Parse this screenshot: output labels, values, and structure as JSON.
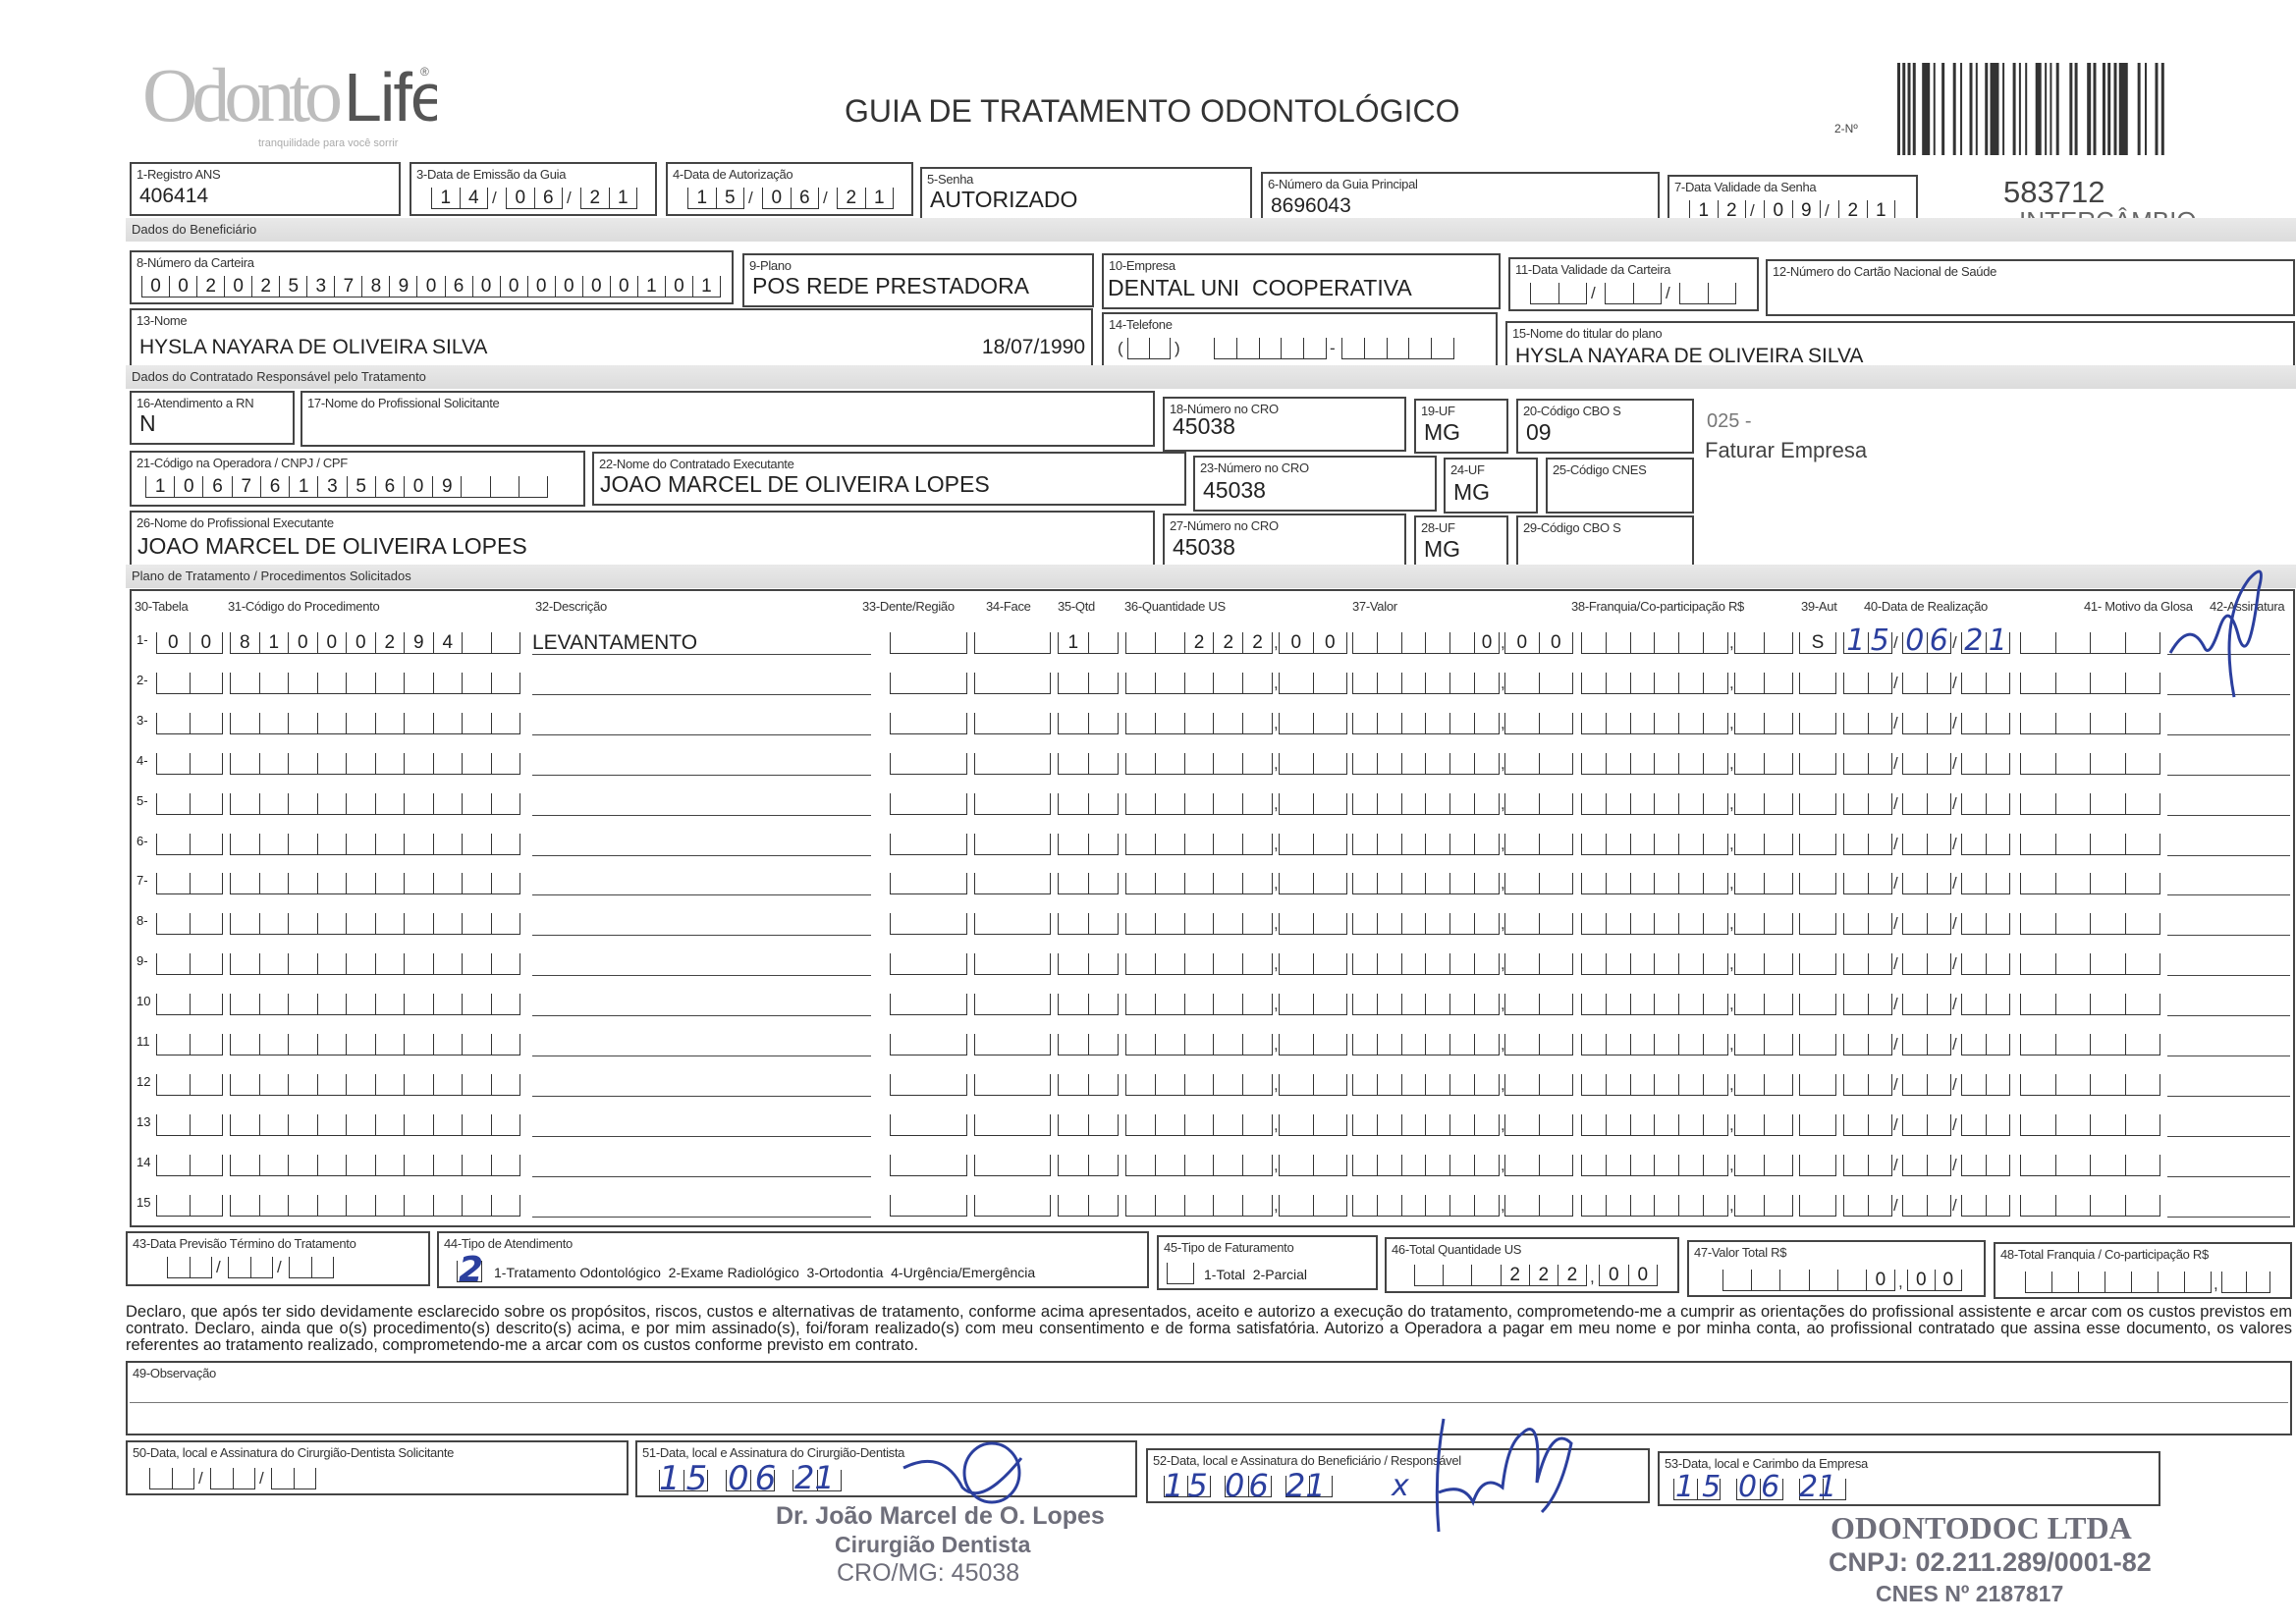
{
  "header": {
    "logo_text": "OdontoLife",
    "logo_tagline": "tranquilidade para você sorrir",
    "title": "GUIA DE TRATAMENTO ODONTOLÓGICO",
    "guide_number_label": "2-Nº",
    "guide_id": "583712",
    "guide_type": "INTERCÂMBIO"
  },
  "fields": {
    "registro_ans": {
      "label": "1-Registro ANS",
      "value": "406414"
    },
    "data_emissao": {
      "label": "3-Data de Emissão da Guia",
      "day": "14",
      "month": "06",
      "year": "21"
    },
    "data_autorizacao": {
      "label": "4-Data de Autorização",
      "day": "15",
      "month": "06",
      "year": "21"
    },
    "senha": {
      "label": "5-Senha",
      "value": "AUTORIZADO"
    },
    "guia_principal": {
      "label": "6-Número da Guia Principal",
      "value": "8696043"
    },
    "validade_senha": {
      "label": "7-Data Validade da Senha",
      "day": "12",
      "month": "09",
      "year": "21"
    }
  },
  "beneficiario": {
    "section_label": "Dados do Beneficiário",
    "carteira": {
      "label": "8-Número da Carteira",
      "value": "002025378906000000101"
    },
    "plano": {
      "label": "9-Plano",
      "value": "POS REDE PRESTADORA"
    },
    "empresa": {
      "label": "10-Empresa",
      "value": "DENTAL UNI  COOPERATIVA"
    },
    "validade_carteira": {
      "label": "11-Data Validade da Carteira",
      "day": "",
      "month": "",
      "year": ""
    },
    "cartao_nacional": {
      "label": "12-Número do Cartão Nacional de Saúde",
      "value": ""
    },
    "nome": {
      "label": "13-Nome",
      "value": "HYSLA NAYARA DE OLIVEIRA SILVA",
      "birth_date": "18/07/1990"
    },
    "telefone": {
      "label": "14-Telefone",
      "ddd": "",
      "part1": "",
      "part2": ""
    },
    "titular": {
      "label": "15-Nome do titular do plano",
      "value": "HYSLA NAYARA DE OLIVEIRA SILVA"
    }
  },
  "contratado": {
    "section_label": "Dados do Contratado Responsável pelo Tratamento",
    "atendimento_rn": {
      "label": "16-Atendimento a RN",
      "value": "N"
    },
    "prof_solicitante": {
      "label": "17-Nome do Profissional Solicitante",
      "value": ""
    },
    "cro_solicitante": {
      "label": "18-Número no CRO",
      "value": "45038"
    },
    "uf_solicitante": {
      "label": "19-UF",
      "value": "MG"
    },
    "cbo_solicitante": {
      "label": "20-Código CBO S",
      "value": "09"
    },
    "codigo_operadora": {
      "label": "21-Código na Operadora / CNPJ / CPF",
      "value": "10676135609"
    },
    "contratado_executante": {
      "label": "22-Nome do Contratado Executante",
      "value": "JOAO MARCEL DE OLIVEIRA LOPES"
    },
    "cro_contratado": {
      "label": "23-Número no CRO",
      "value": "45038"
    },
    "uf_contratado": {
      "label": "24-UF",
      "value": "MG"
    },
    "cnes": {
      "label": "25-Código CNES",
      "value": ""
    },
    "prof_executante": {
      "label": "26-Nome do Profissional Executante",
      "value": "JOAO MARCEL DE OLIVEIRA LOPES"
    },
    "cro_executante": {
      "label": "27-Número no CRO",
      "value": "45038"
    },
    "uf_executante": {
      "label": "28-UF",
      "value": "MG"
    },
    "cbo_executante": {
      "label": "29-Código CBO S",
      "value": ""
    },
    "side_note_code": "025 -",
    "side_note_billing": "Faturar Empresa"
  },
  "procedures": {
    "section_label": "Plano de Tratamento / Procedimentos Solicitados",
    "headers": {
      "tabela": "30-Tabela",
      "codigo": "31-Código do Procedimento",
      "descricao": "32-Descrição",
      "dente": "33-Dente/Região",
      "face": "34-Face",
      "qtd": "35-Qtd",
      "qtd_us": "36-Quantidade US",
      "valor": "37-Valor",
      "franquia": "38-Franquia/Co-participação R$",
      "aut": "39-Aut",
      "data": "40-Data de Realização",
      "motivo": "41- Motivo da Glosa",
      "assinatura": "42-Assinatura"
    },
    "rows": [
      {
        "num": "1-",
        "tabela": "00",
        "codigo": "81000294",
        "descricao": "LEVANTAMENTO",
        "dente": "",
        "face": "",
        "qtd": "1",
        "qtd_us_int": "222",
        "qtd_us_dec": "00",
        "valor_int": "0",
        "valor_dec": "00",
        "franq_int": "",
        "franq_dec": "",
        "aut": "S",
        "day": "15",
        "month": "06",
        "year": "21",
        "motivo": "",
        "signed": true
      },
      {
        "num": "2-"
      },
      {
        "num": "3-"
      },
      {
        "num": "4-"
      },
      {
        "num": "5-"
      },
      {
        "num": "6-"
      },
      {
        "num": "7-"
      },
      {
        "num": "8-"
      },
      {
        "num": "9-"
      },
      {
        "num": "10"
      },
      {
        "num": "11"
      },
      {
        "num": "12"
      },
      {
        "num": "13"
      },
      {
        "num": "14"
      },
      {
        "num": "15"
      }
    ]
  },
  "totals": {
    "previsao_termino": {
      "label": "43-Data Previsão Término do Tratamento",
      "day": "",
      "month": "",
      "year": ""
    },
    "tipo_atendimento": {
      "label": "44-Tipo de Atendimento",
      "value": "2",
      "options": "1-Tratamento Odontológico  2-Exame Radiológico  3-Ortodontia  4-Urgência/Emergência"
    },
    "tipo_faturamento": {
      "label": "45-Tipo de Faturamento",
      "value": "",
      "options": "1-Total  2-Parcial"
    },
    "total_qtd_us": {
      "label": "46-Total Quantidade US",
      "int": "222",
      "dec": "00"
    },
    "valor_total": {
      "label": "47-Valor Total R$",
      "int": "0",
      "dec": "00"
    },
    "total_franquia": {
      "label": "48-Total Franquia / Co-participação R$",
      "int": "",
      "dec": ""
    }
  },
  "declaration": "Declaro, que após ter sido devidamente esclarecido sobre os propósitos, riscos, custos e alternativas de tratamento, conforme acima apresentados, aceito e autorizo a execução do tratamento, comprometendo-me a cumprir as orientações do profissional assistente e arcar com os custos previstos em contrato. Declaro, ainda que o(s) procedimento(s) descrito(s) acima, e por mim assinado(s), foi/foram realizado(s) com meu consentimento e de forma satisfatória. Autorizo a Operadora a pagar em meu nome e por minha conta, ao profissional contratado que assina esse documento, os valores referentes ao tratamento realizado, comprometendo-me a arcar com os custos conforme previsto em contrato.",
  "observacao": {
    "label": "49-Observação",
    "value": ""
  },
  "signatures": {
    "solicitante": {
      "label": "50-Data, local e Assinatura do Cirurgião-Dentista Solicitante",
      "day": "",
      "month": "",
      "year": ""
    },
    "executante": {
      "label": "51-Data, local e Assinatura do Cirurgião-Dentista",
      "day": "15",
      "month": "06",
      "year": "21"
    },
    "beneficiario": {
      "label": "52-Data, local e Assinatura do Beneficiário / Responsável",
      "day": "15",
      "month": "06",
      "year": "21",
      "mark": "x"
    },
    "empresa": {
      "label": "53-Data, local e Carimbo da Empresa",
      "day": "15",
      "month": "06",
      "year": "21"
    }
  },
  "stamps": {
    "dentist_name": "Dr. João Marcel de O. Lopes",
    "dentist_title": "Cirurgião Dentista",
    "dentist_cro": "CRO/MG: 45038",
    "company_name": "ODONTODOC LTDA",
    "company_cnpj": "CNPJ: 02.211.289/0001-82",
    "company_cnes": "CNES Nº 2187817"
  },
  "colors": {
    "ink_blue": "#2b3f9e",
    "form_line": "#444444",
    "section_band": "#e0e0e0"
  }
}
